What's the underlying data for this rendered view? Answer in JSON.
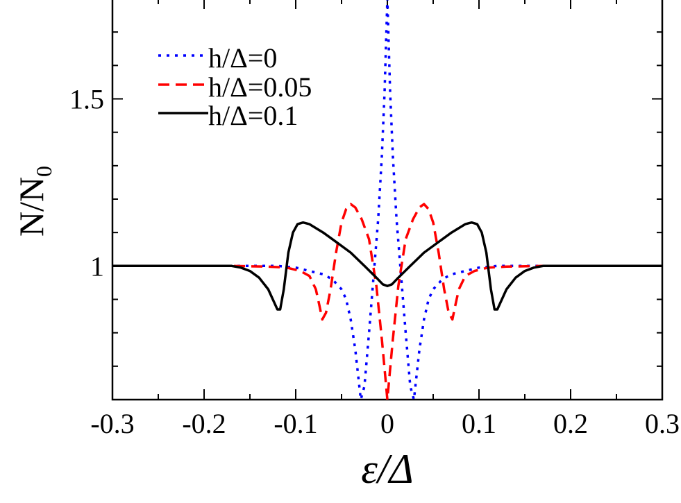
{
  "chart_data": {
    "type": "line",
    "xlabel": "ε/Δ",
    "ylabel_main": "N/N",
    "ylabel_sub": "0",
    "xlim": [
      -0.3,
      0.3
    ],
    "ylim": [
      0.6,
      1.8
    ],
    "xticks": [
      {
        "value": -0.3,
        "label": "-0.3"
      },
      {
        "value": -0.2,
        "label": "-0.2"
      },
      {
        "value": -0.1,
        "label": "-0.1"
      },
      {
        "value": 0,
        "label": "0"
      },
      {
        "value": 0.1,
        "label": "0.1"
      },
      {
        "value": 0.2,
        "label": "0.2"
      },
      {
        "value": 0.3,
        "label": "0.3"
      }
    ],
    "yticks": [
      {
        "value": 1,
        "label": "1"
      },
      {
        "value": 1.5,
        "label": "1.5"
      }
    ],
    "legend_position": "top-left",
    "series": [
      {
        "name": "h/Δ=0",
        "color": "#0000ff",
        "dash": "dotted",
        "points": [
          [
            -0.3,
            1.0
          ],
          [
            -0.17,
            1.0
          ],
          [
            -0.12,
            1.0
          ],
          [
            -0.1,
            0.995
          ],
          [
            -0.085,
            0.985
          ],
          [
            -0.07,
            0.975
          ],
          [
            -0.06,
            0.96
          ],
          [
            -0.05,
            0.93
          ],
          [
            -0.045,
            0.9
          ],
          [
            -0.04,
            0.84
          ],
          [
            -0.035,
            0.75
          ],
          [
            -0.031,
            0.65
          ],
          [
            -0.029,
            0.6
          ],
          [
            -0.025,
            0.64
          ],
          [
            -0.02,
            0.8
          ],
          [
            -0.015,
            0.97
          ],
          [
            -0.01,
            1.14
          ],
          [
            -0.006,
            1.33
          ],
          [
            -0.003,
            1.52
          ],
          [
            0.0,
            1.8
          ],
          [
            0.003,
            1.52
          ],
          [
            0.006,
            1.33
          ],
          [
            0.01,
            1.14
          ],
          [
            0.015,
            0.97
          ],
          [
            0.02,
            0.8
          ],
          [
            0.025,
            0.64
          ],
          [
            0.029,
            0.6
          ],
          [
            0.031,
            0.65
          ],
          [
            0.035,
            0.75
          ],
          [
            0.04,
            0.84
          ],
          [
            0.045,
            0.9
          ],
          [
            0.05,
            0.93
          ],
          [
            0.06,
            0.96
          ],
          [
            0.07,
            0.975
          ],
          [
            0.085,
            0.985
          ],
          [
            0.1,
            0.995
          ],
          [
            0.12,
            1.0
          ],
          [
            0.17,
            1.0
          ],
          [
            0.3,
            1.0
          ]
        ]
      },
      {
        "name": "h/Δ=0.05",
        "color": "#ff0000",
        "dash": "dashed",
        "points": [
          [
            -0.3,
            1.0
          ],
          [
            -0.17,
            1.0
          ],
          [
            -0.13,
            0.998
          ],
          [
            -0.11,
            0.995
          ],
          [
            -0.095,
            0.985
          ],
          [
            -0.085,
            0.97
          ],
          [
            -0.078,
            0.93
          ],
          [
            -0.074,
            0.88
          ],
          [
            -0.071,
            0.84
          ],
          [
            -0.067,
            0.86
          ],
          [
            -0.062,
            0.93
          ],
          [
            -0.056,
            1.04
          ],
          [
            -0.05,
            1.13
          ],
          [
            -0.045,
            1.17
          ],
          [
            -0.04,
            1.185
          ],
          [
            -0.035,
            1.175
          ],
          [
            -0.028,
            1.14
          ],
          [
            -0.02,
            1.08
          ],
          [
            -0.012,
            0.94
          ],
          [
            -0.006,
            0.78
          ],
          [
            -0.002,
            0.66
          ],
          [
            0.0,
            0.6
          ],
          [
            0.002,
            0.66
          ],
          [
            0.006,
            0.78
          ],
          [
            0.012,
            0.94
          ],
          [
            0.02,
            1.08
          ],
          [
            0.028,
            1.14
          ],
          [
            0.035,
            1.175
          ],
          [
            0.04,
            1.185
          ],
          [
            0.045,
            1.17
          ],
          [
            0.05,
            1.13
          ],
          [
            0.056,
            1.04
          ],
          [
            0.062,
            0.93
          ],
          [
            0.067,
            0.86
          ],
          [
            0.071,
            0.84
          ],
          [
            0.074,
            0.88
          ],
          [
            0.078,
            0.93
          ],
          [
            0.085,
            0.97
          ],
          [
            0.095,
            0.985
          ],
          [
            0.11,
            0.995
          ],
          [
            0.13,
            0.998
          ],
          [
            0.17,
            1.0
          ],
          [
            0.3,
            1.0
          ]
        ]
      },
      {
        "name": "h/Δ=0.1",
        "color": "#000000",
        "dash": "solid",
        "points": [
          [
            -0.3,
            1.0
          ],
          [
            -0.2,
            1.0
          ],
          [
            -0.17,
            1.0
          ],
          [
            -0.16,
            0.995
          ],
          [
            -0.15,
            0.985
          ],
          [
            -0.14,
            0.965
          ],
          [
            -0.13,
            0.93
          ],
          [
            -0.125,
            0.9
          ],
          [
            -0.12,
            0.87
          ],
          [
            -0.117,
            0.87
          ],
          [
            -0.113,
            0.93
          ],
          [
            -0.108,
            1.04
          ],
          [
            -0.103,
            1.1
          ],
          [
            -0.098,
            1.125
          ],
          [
            -0.092,
            1.13
          ],
          [
            -0.085,
            1.125
          ],
          [
            -0.07,
            1.1
          ],
          [
            -0.055,
            1.07
          ],
          [
            -0.04,
            1.04
          ],
          [
            -0.025,
            1.0
          ],
          [
            -0.012,
            0.965
          ],
          [
            -0.005,
            0.945
          ],
          [
            0.0,
            0.94
          ],
          [
            0.005,
            0.945
          ],
          [
            0.012,
            0.965
          ],
          [
            0.025,
            1.0
          ],
          [
            0.04,
            1.04
          ],
          [
            0.055,
            1.07
          ],
          [
            0.07,
            1.1
          ],
          [
            0.085,
            1.125
          ],
          [
            0.092,
            1.13
          ],
          [
            0.098,
            1.125
          ],
          [
            0.103,
            1.1
          ],
          [
            0.108,
            1.04
          ],
          [
            0.113,
            0.93
          ],
          [
            0.117,
            0.87
          ],
          [
            0.12,
            0.87
          ],
          [
            0.125,
            0.9
          ],
          [
            0.13,
            0.93
          ],
          [
            0.14,
            0.965
          ],
          [
            0.15,
            0.985
          ],
          [
            0.16,
            0.995
          ],
          [
            0.17,
            1.0
          ],
          [
            0.2,
            1.0
          ],
          [
            0.3,
            1.0
          ]
        ]
      }
    ]
  }
}
